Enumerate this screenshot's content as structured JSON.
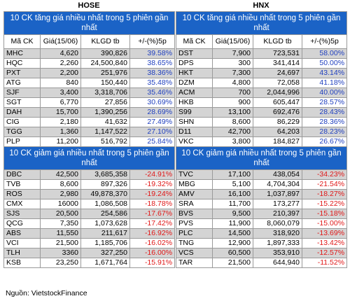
{
  "hose": {
    "exchange": "HOSE",
    "gain_title": "10 CK tăng giá nhiều nhất trong 5 phiên gần nhất",
    "loss_title": "10 CK giảm giá nhiều nhất trong 5 phiên gần nhất",
    "columns": [
      "Mã CK",
      "Giá(15/06)",
      "KLGD tb",
      "+/-(%)5p"
    ],
    "gainers": [
      [
        "MHC",
        "4,620",
        "390,826",
        "39.58%"
      ],
      [
        "HQC",
        "2,260",
        "24,500,840",
        "38.65%"
      ],
      [
        "PXT",
        "2,200",
        "251,976",
        "38.36%"
      ],
      [
        "ATG",
        "840",
        "150,440",
        "35.48%"
      ],
      [
        "SJF",
        "3,400",
        "3,318,706",
        "35.46%"
      ],
      [
        "SGT",
        "6,770",
        "27,856",
        "30.69%"
      ],
      [
        "DAH",
        "15,700",
        "1,390,256",
        "28.69%"
      ],
      [
        "CIG",
        "2,180",
        "41,632",
        "27.49%"
      ],
      [
        "TGG",
        "1,360",
        "1,147,522",
        "27.10%"
      ],
      [
        "PLP",
        "11,200",
        "516,792",
        "25.84%"
      ]
    ],
    "losers": [
      [
        "DBC",
        "42,500",
        "3,685,358",
        "-24.91%"
      ],
      [
        "TVB",
        "8,600",
        "897,326",
        "-19.32%"
      ],
      [
        "ROS",
        "2,980",
        "49,878,370",
        "-19.24%"
      ],
      [
        "CMX",
        "16000",
        "1,086,508",
        "-18.78%"
      ],
      [
        "SJS",
        "20,500",
        "254,586",
        "-17.67%"
      ],
      [
        "QCG",
        "7,350",
        "1,073,628",
        "-17.42%"
      ],
      [
        "ABS",
        "11,550",
        "211,617",
        "-16.92%"
      ],
      [
        "VCI",
        "21,500",
        "1,185,706",
        "-16.02%"
      ],
      [
        "TLH",
        "3360",
        "327,250",
        "-16.00%"
      ],
      [
        "KSB",
        "23,250",
        "1,671,764",
        "-15.91%"
      ]
    ]
  },
  "hnx": {
    "exchange": "HNX",
    "gain_title": "10 CK tăng giá nhiều nhất trong 5 phiên gần nhất",
    "loss_title": "10 CK giảm giá nhiều nhất trong 5 phiên gần nhất",
    "columns": [
      "Mã CK",
      "Giá(15/06)",
      "KLGD tb",
      "+/-(%)5p"
    ],
    "gainers": [
      [
        "DST",
        "7,900",
        "723,531",
        "58.00%"
      ],
      [
        "DPS",
        "300",
        "341,414",
        "50.00%"
      ],
      [
        "HKT",
        "7,300",
        "24,697",
        "43.14%"
      ],
      [
        "DZM",
        "4,800",
        "72,058",
        "41.18%"
      ],
      [
        "ACM",
        "700",
        "2,044,996",
        "40.00%"
      ],
      [
        "HKB",
        "900",
        "605,447",
        "28.57%"
      ],
      [
        "S99",
        "13,100",
        "692,476",
        "28.43%"
      ],
      [
        "SHN",
        "8,600",
        "86,229",
        "28.36%"
      ],
      [
        "D11",
        "42,700",
        "64,203",
        "28.23%"
      ],
      [
        "VKC",
        "3,800",
        "184,827",
        "26.67%"
      ]
    ],
    "losers": [
      [
        "TVC",
        "17,100",
        "438,054",
        "-34.23%"
      ],
      [
        "MBG",
        "5,100",
        "4,704,304",
        "-21.54%"
      ],
      [
        "AMV",
        "16,100",
        "1,037,897",
        "-18.27%"
      ],
      [
        "SRA",
        "11,700",
        "173,277",
        "-15.22%"
      ],
      [
        "BVS",
        "9,500",
        "210,397",
        "-15.18%"
      ],
      [
        "PVS",
        "11,900",
        "8,060,079",
        "-15.00%"
      ],
      [
        "PLC",
        "14,500",
        "318,920",
        "-13.69%"
      ],
      [
        "TNG",
        "12,900",
        "1,897,333",
        "-13.42%"
      ],
      [
        "VCS",
        "60,500",
        "353,910",
        "-12.57%"
      ],
      [
        "TAR",
        "21,500",
        "644,940",
        "-11.52%"
      ]
    ]
  },
  "source": "Nguồn: VietstockFinance",
  "colors": {
    "header_blue": "#1b63c6",
    "gain_text": "#1f3fbf",
    "loss_text": "#e01818",
    "row_gray": "#d4d4d4"
  }
}
